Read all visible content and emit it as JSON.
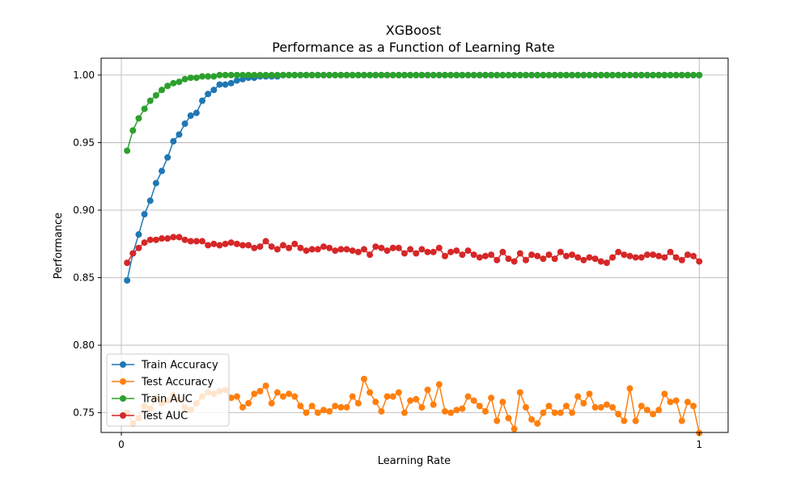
{
  "chart_data": {
    "type": "line",
    "title": "XGBoost",
    "subtitle": "Performance as a Function of Learning Rate",
    "xlabel": "Learning Rate",
    "ylabel": "Performance",
    "xlim": [
      -0.035,
      1.05
    ],
    "ylim": [
      0.7354,
      1.0125
    ],
    "xticks": [
      0,
      1
    ],
    "xtick_labels": [
      "0",
      "1"
    ],
    "yticks": [
      0.75,
      0.8,
      0.85,
      0.9,
      0.95,
      1.0
    ],
    "ytick_labels": [
      "0.75",
      "0.80",
      "0.85",
      "0.90",
      "0.95",
      "1.00"
    ],
    "grid": true,
    "legend_position": "lower-left",
    "x_range": [
      0.01,
      1.0
    ],
    "n_points": 100,
    "series": [
      {
        "name": "Train Accuracy",
        "color": "#1f77b4",
        "values": [
          0.848,
          0.868,
          0.882,
          0.897,
          0.907,
          0.92,
          0.929,
          0.939,
          0.951,
          0.956,
          0.964,
          0.97,
          0.972,
          0.981,
          0.986,
          0.989,
          0.993,
          0.993,
          0.994,
          0.996,
          0.997,
          0.998,
          0.998,
          0.999,
          0.999,
          0.999,
          0.999,
          1.0,
          1.0,
          1.0,
          1.0,
          1.0,
          1.0,
          1.0,
          1.0,
          1.0,
          1.0,
          1.0,
          1.0,
          1.0,
          1.0,
          1.0,
          1.0,
          1.0,
          1.0,
          1.0,
          1.0,
          1.0,
          1.0,
          1.0,
          1.0,
          1.0,
          1.0,
          1.0,
          1.0,
          1.0,
          1.0,
          1.0,
          1.0,
          1.0,
          1.0,
          1.0,
          1.0,
          1.0,
          1.0,
          1.0,
          1.0,
          1.0,
          1.0,
          1.0,
          1.0,
          1.0,
          1.0,
          1.0,
          1.0,
          1.0,
          1.0,
          1.0,
          1.0,
          1.0,
          1.0,
          1.0,
          1.0,
          1.0,
          1.0,
          1.0,
          1.0,
          1.0,
          1.0,
          1.0,
          1.0,
          1.0,
          1.0,
          1.0,
          1.0,
          1.0,
          1.0,
          1.0,
          1.0,
          1.0
        ]
      },
      {
        "name": "Test Accuracy",
        "color": "#ff7f0e",
        "values": [
          0.75,
          0.742,
          0.746,
          0.755,
          0.753,
          0.761,
          0.757,
          0.759,
          0.763,
          0.76,
          0.754,
          0.752,
          0.757,
          0.762,
          0.765,
          0.764,
          0.766,
          0.767,
          0.761,
          0.762,
          0.754,
          0.757,
          0.764,
          0.766,
          0.77,
          0.757,
          0.765,
          0.762,
          0.764,
          0.762,
          0.755,
          0.75,
          0.755,
          0.75,
          0.752,
          0.751,
          0.755,
          0.754,
          0.754,
          0.762,
          0.757,
          0.775,
          0.765,
          0.758,
          0.751,
          0.762,
          0.762,
          0.765,
          0.75,
          0.759,
          0.76,
          0.754,
          0.767,
          0.756,
          0.771,
          0.751,
          0.75,
          0.752,
          0.753,
          0.762,
          0.759,
          0.755,
          0.751,
          0.761,
          0.744,
          0.758,
          0.746,
          0.738,
          0.765,
          0.754,
          0.745,
          0.742,
          0.75,
          0.755,
          0.75,
          0.75,
          0.755,
          0.75,
          0.762,
          0.757,
          0.764,
          0.754,
          0.754,
          0.756,
          0.754,
          0.749,
          0.744,
          0.768,
          0.744,
          0.755,
          0.752,
          0.749,
          0.752,
          0.764,
          0.758,
          0.759,
          0.744,
          0.758,
          0.755,
          0.735
        ]
      },
      {
        "name": "Train AUC",
        "color": "#2ca02c",
        "values": [
          0.944,
          0.959,
          0.968,
          0.975,
          0.981,
          0.985,
          0.989,
          0.992,
          0.994,
          0.995,
          0.997,
          0.998,
          0.998,
          0.999,
          0.999,
          0.999,
          1.0,
          1.0,
          1.0,
          1.0,
          1.0,
          1.0,
          1.0,
          1.0,
          1.0,
          1.0,
          1.0,
          1.0,
          1.0,
          1.0,
          1.0,
          1.0,
          1.0,
          1.0,
          1.0,
          1.0,
          1.0,
          1.0,
          1.0,
          1.0,
          1.0,
          1.0,
          1.0,
          1.0,
          1.0,
          1.0,
          1.0,
          1.0,
          1.0,
          1.0,
          1.0,
          1.0,
          1.0,
          1.0,
          1.0,
          1.0,
          1.0,
          1.0,
          1.0,
          1.0,
          1.0,
          1.0,
          1.0,
          1.0,
          1.0,
          1.0,
          1.0,
          1.0,
          1.0,
          1.0,
          1.0,
          1.0,
          1.0,
          1.0,
          1.0,
          1.0,
          1.0,
          1.0,
          1.0,
          1.0,
          1.0,
          1.0,
          1.0,
          1.0,
          1.0,
          1.0,
          1.0,
          1.0,
          1.0,
          1.0,
          1.0,
          1.0,
          1.0,
          1.0,
          1.0,
          1.0,
          1.0,
          1.0,
          1.0,
          1.0
        ]
      },
      {
        "name": "Test AUC",
        "color": "#d62728",
        "values": [
          0.861,
          0.868,
          0.872,
          0.876,
          0.878,
          0.878,
          0.879,
          0.879,
          0.88,
          0.88,
          0.878,
          0.877,
          0.877,
          0.877,
          0.874,
          0.875,
          0.874,
          0.875,
          0.876,
          0.875,
          0.874,
          0.874,
          0.872,
          0.873,
          0.877,
          0.873,
          0.871,
          0.874,
          0.872,
          0.875,
          0.872,
          0.87,
          0.871,
          0.871,
          0.873,
          0.872,
          0.87,
          0.871,
          0.871,
          0.87,
          0.869,
          0.871,
          0.867,
          0.873,
          0.872,
          0.87,
          0.872,
          0.872,
          0.868,
          0.871,
          0.868,
          0.871,
          0.869,
          0.869,
          0.872,
          0.866,
          0.869,
          0.87,
          0.867,
          0.87,
          0.867,
          0.865,
          0.866,
          0.867,
          0.863,
          0.869,
          0.864,
          0.862,
          0.868,
          0.863,
          0.867,
          0.866,
          0.864,
          0.867,
          0.864,
          0.869,
          0.866,
          0.867,
          0.865,
          0.863,
          0.865,
          0.864,
          0.862,
          0.861,
          0.865,
          0.869,
          0.867,
          0.866,
          0.865,
          0.865,
          0.867,
          0.867,
          0.866,
          0.865,
          0.869,
          0.865,
          0.863,
          0.867,
          0.866,
          0.862
        ]
      }
    ]
  }
}
